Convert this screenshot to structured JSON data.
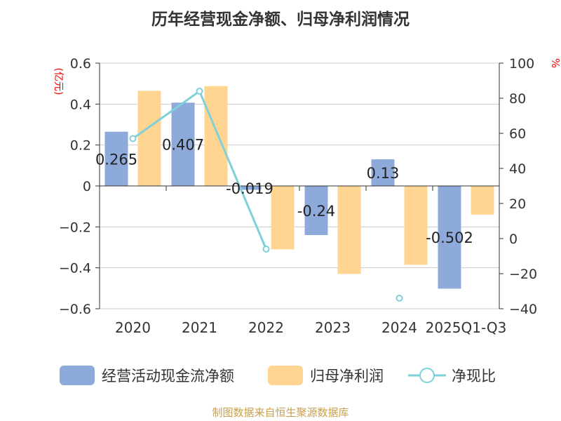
{
  "chart_data": {
    "type": "bar",
    "title": "历年经营现金净额、归母净利润情况",
    "left_axis_unit": "(亿元)",
    "right_axis_unit": "%",
    "categories": [
      "2020",
      "2021",
      "2022",
      "2023",
      "2024",
      "2025Q1-Q3"
    ],
    "left_ylim": [
      -0.6,
      0.6
    ],
    "left_ticks": [
      "0.6",
      "0.4",
      "0.2",
      "0",
      "-0.2",
      "-0.4",
      "-0.6"
    ],
    "right_ylim": [
      -40,
      100
    ],
    "right_ticks": [
      "100",
      "80",
      "60",
      "40",
      "20",
      "0",
      "-20",
      "-40"
    ],
    "grid": true,
    "legend_position": "bottom",
    "series": [
      {
        "name": "经营活动现金流净额",
        "kind": "bar",
        "axis": "left",
        "color": "#8eaadb",
        "values": [
          0.265,
          0.407,
          -0.019,
          -0.24,
          0.13,
          -0.502
        ],
        "labels": [
          "0.265",
          "0.407",
          "-0.019",
          "-0.24",
          "0.13",
          "-0.502"
        ]
      },
      {
        "name": "归母净利润",
        "kind": "bar",
        "axis": "left",
        "color": "#ffd591",
        "values": [
          0.465,
          0.488,
          -0.31,
          -0.43,
          -0.385,
          -0.14
        ]
      },
      {
        "name": "净现比",
        "kind": "line",
        "axis": "right",
        "color": "#7fd0d8",
        "values": [
          57,
          84,
          -6,
          null,
          -34,
          null
        ]
      }
    ]
  },
  "source_note": "制图数据来自恒生聚源数据库"
}
